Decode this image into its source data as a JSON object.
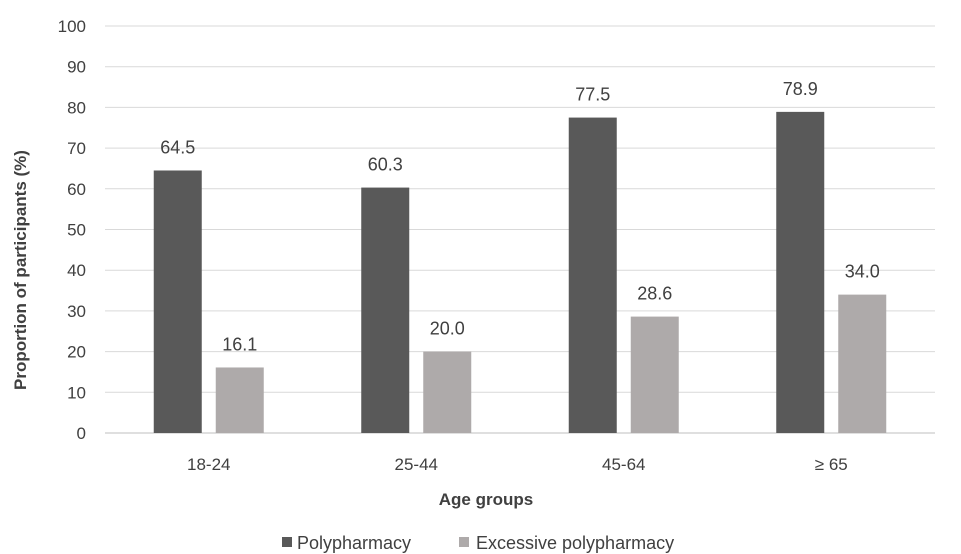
{
  "chart_data": {
    "type": "bar",
    "categories": [
      "18-24",
      "25-44",
      "45-64",
      "≥ 65"
    ],
    "series": [
      {
        "name": "Polypharmacy",
        "values": [
          64.5,
          60.3,
          77.5,
          78.9
        ],
        "color": "#595959"
      },
      {
        "name": "Excessive polypharmacy",
        "values": [
          16.1,
          20.0,
          28.6,
          34.0
        ],
        "color": "#aeaaaa"
      }
    ],
    "data_labels": [
      [
        "64.5",
        "60.3",
        "77.5",
        "78.9"
      ],
      [
        "16.1",
        "20.0",
        "28.6",
        "34.0"
      ]
    ],
    "xlabel": "Age groups",
    "ylabel": "Proportion of participants (%)",
    "ylim": [
      0,
      100
    ],
    "yticks": [
      0,
      10,
      20,
      30,
      40,
      50,
      60,
      70,
      80,
      90,
      100
    ],
    "grid": true,
    "legend_position": "bottom"
  }
}
